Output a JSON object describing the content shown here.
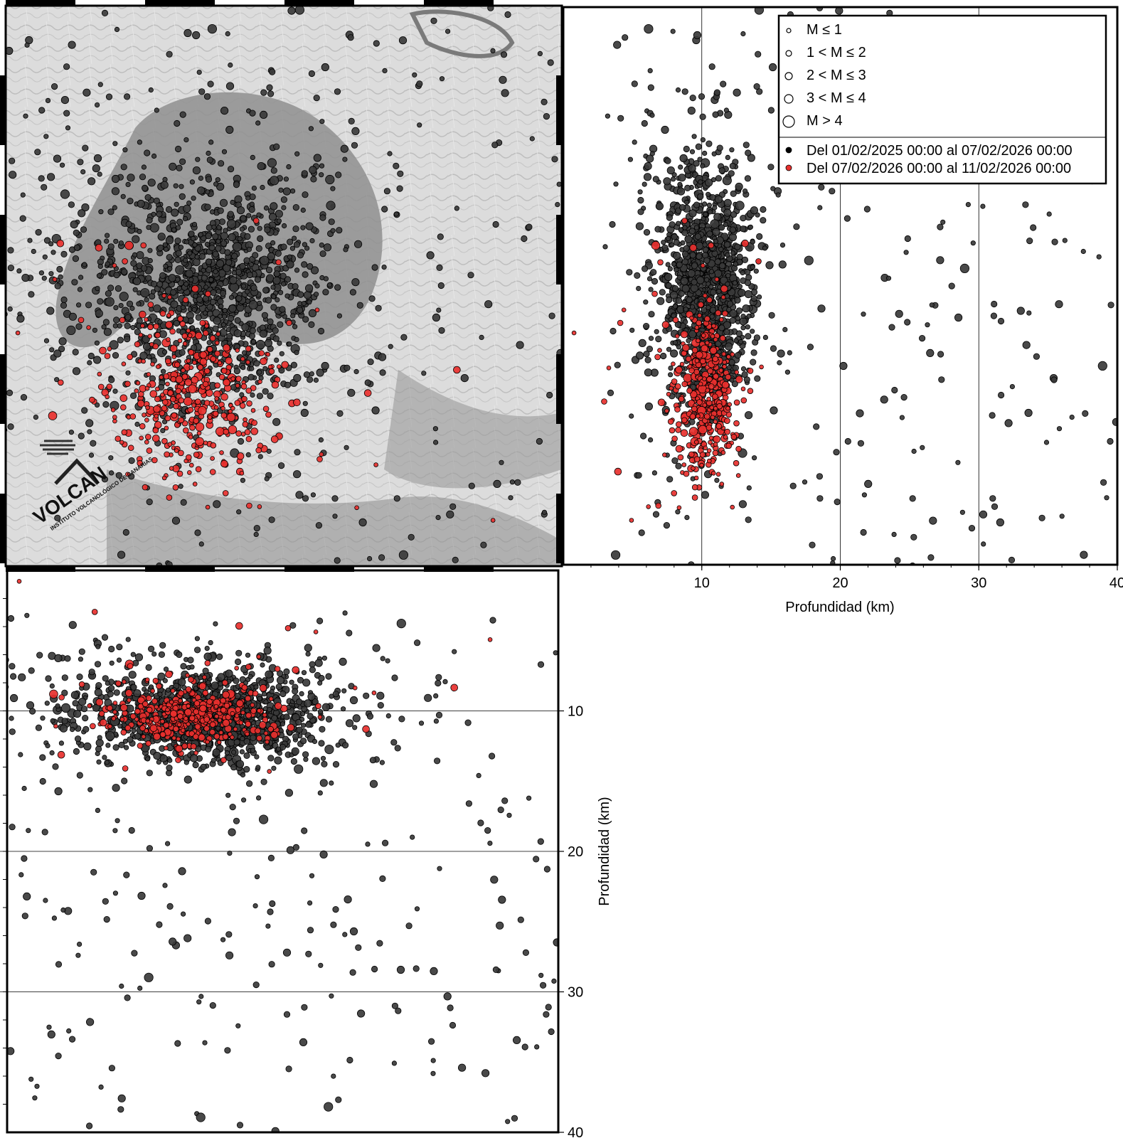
{
  "chart_data": [
    {
      "type": "scatter",
      "panel": "map",
      "xlabel": "",
      "ylabel": "",
      "background": "grayscale shaded-relief map",
      "series": [
        {
          "color": "#3c3c3c",
          "count": 1500
        },
        {
          "color": "#e8302e",
          "count": 420
        }
      ]
    },
    {
      "type": "scatter",
      "panel": "east-west-depth-section",
      "xlabel": "Profundidad (km)",
      "xlim": [
        0,
        40
      ],
      "xticks": [
        "10",
        "20",
        "30",
        "40"
      ],
      "grid": true
    },
    {
      "type": "scatter",
      "panel": "north-south-depth-section",
      "ylabel": "Profundidad (km)",
      "ylim": [
        0,
        40
      ],
      "yticks": [
        "10",
        "20",
        "30",
        "40"
      ],
      "grid": true
    }
  ],
  "legend": {
    "magnitudes": [
      "M ≤ 1",
      "1 < M ≤ 2",
      "2 < M ≤ 3",
      "3 < M ≤ 4",
      "M > 4"
    ],
    "periods": [
      {
        "label": "Del 01/02/2025 00:00 al 07/02/2026 00:00",
        "color": "#000000"
      },
      {
        "label": "Del 07/02/2026 00:00 al 11/02/2026 00:00",
        "color": "#e8302e"
      }
    ]
  },
  "logo": {
    "text": "VOLCAN",
    "subtitle": "INSTITUTO VOLCANOLÓGICO DE CANARIAS"
  },
  "colors": {
    "old": "#3a3a3a",
    "new": "#e8302e",
    "outline": "#000000"
  }
}
